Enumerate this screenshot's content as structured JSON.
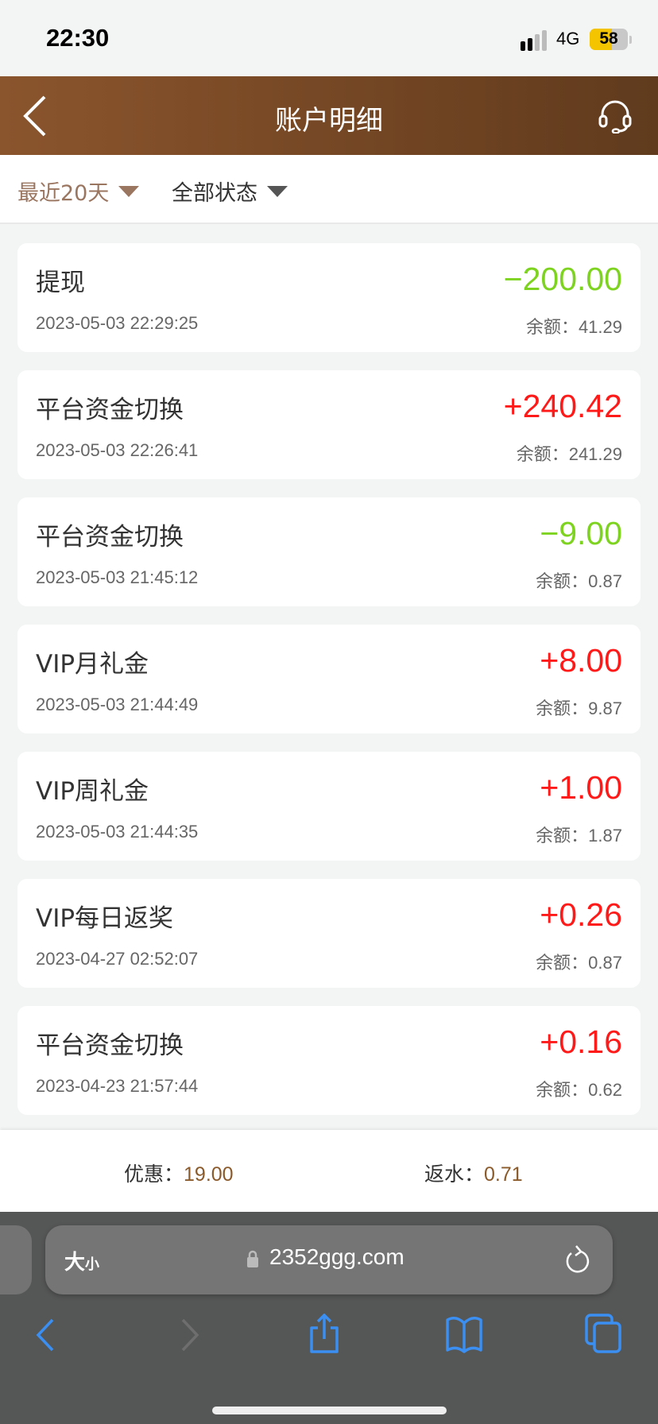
{
  "status_bar": {
    "time": "22:30",
    "network": "4G",
    "battery": "58",
    "battery_level": 0.58
  },
  "header": {
    "title": "账户明细",
    "back_icon": "chevron-left-icon",
    "support_icon": "headset-icon"
  },
  "filters": [
    {
      "label": "最近20天",
      "color": "#9a7560"
    },
    {
      "label": "全部状态",
      "color": "#333333"
    }
  ],
  "colors": {
    "income": "#ff1a1a",
    "expense": "#7ed321",
    "accent": "#8b5a2b",
    "header_start": "#8a552d",
    "header_end": "#603b1d"
  },
  "transactions": [
    {
      "title": "提现",
      "amount": "−200.00",
      "type": "expense",
      "datetime": "2023-05-03 22:29:25",
      "balance": "余额：41.29"
    },
    {
      "title": "平台资金切换",
      "amount": "+240.42",
      "type": "income",
      "datetime": "2023-05-03 22:26:41",
      "balance": "余额：241.29"
    },
    {
      "title": "平台资金切换",
      "amount": "−9.00",
      "type": "expense",
      "datetime": "2023-05-03 21:45:12",
      "balance": "余额：0.87"
    },
    {
      "title": "VIP月礼金",
      "amount": "+8.00",
      "type": "income",
      "datetime": "2023-05-03 21:44:49",
      "balance": "余额：9.87"
    },
    {
      "title": "VIP周礼金",
      "amount": "+1.00",
      "type": "income",
      "datetime": "2023-05-03 21:44:35",
      "balance": "余额：1.87"
    },
    {
      "title": "VIP每日返奖",
      "amount": "+0.26",
      "type": "income",
      "datetime": "2023-04-27 02:52:07",
      "balance": "余额：0.87"
    },
    {
      "title": "平台资金切换",
      "amount": "+0.16",
      "type": "income",
      "datetime": "2023-04-23 21:57:44",
      "balance": "余额：0.62"
    }
  ],
  "summary": {
    "discount_label": "优惠：",
    "discount_value": "19.00",
    "rebate_label": "返水：",
    "rebate_value": "0.71"
  },
  "browser": {
    "text_size_big": "大",
    "text_size_small": "小",
    "url": "2352ggg.com"
  }
}
